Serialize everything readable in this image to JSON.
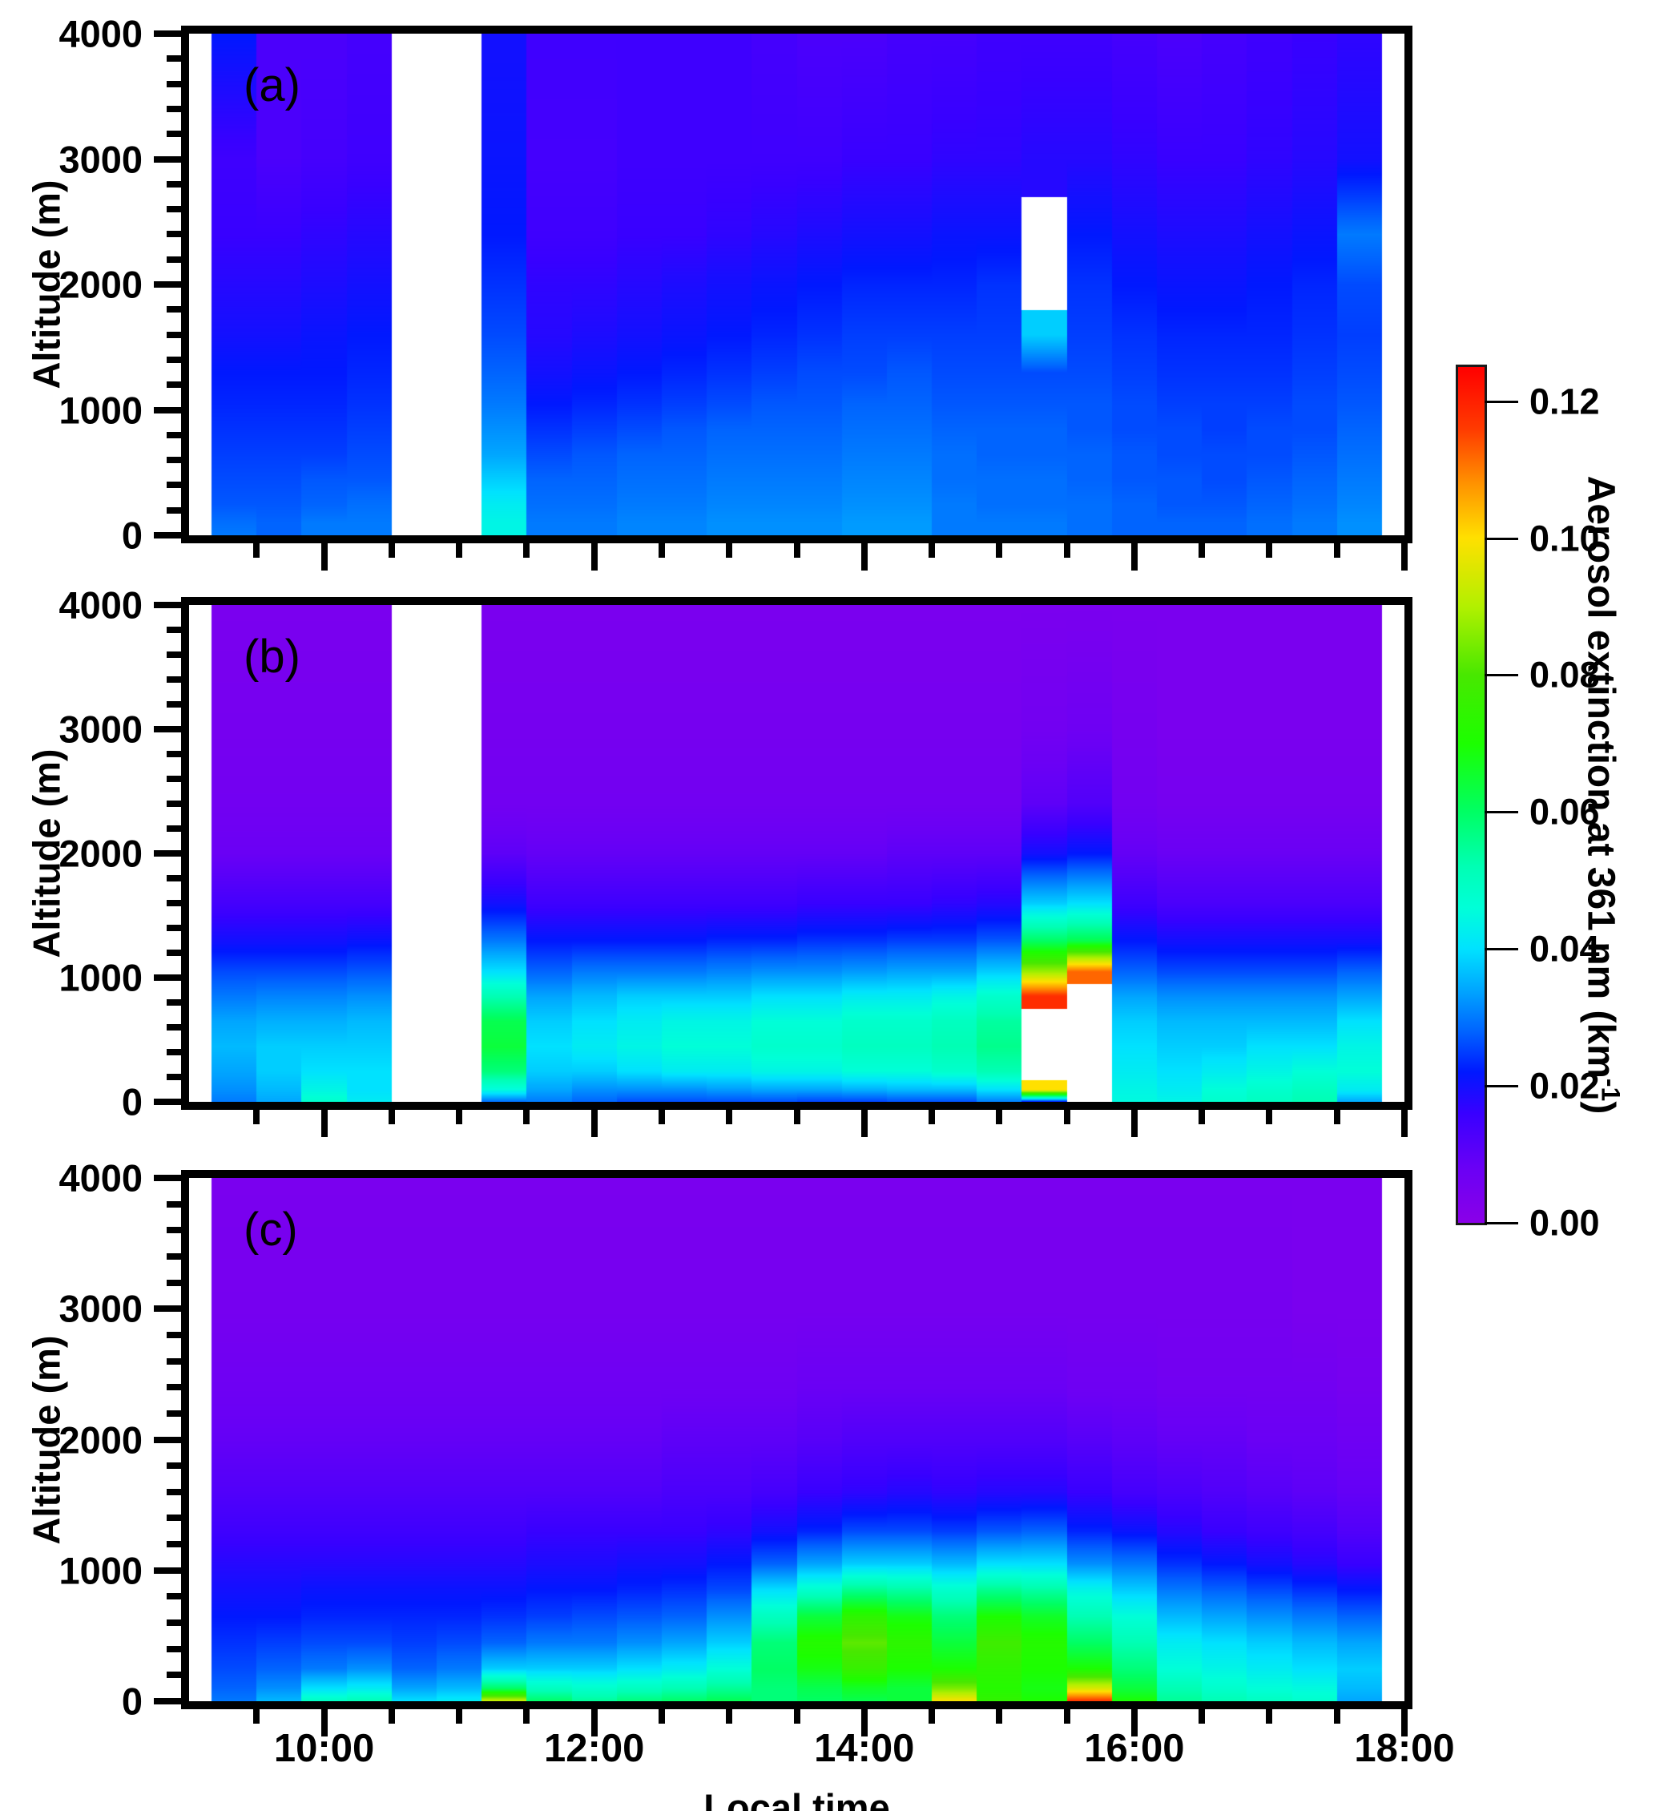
{
  "figure": {
    "y_axis": {
      "title": "Altitude (m)",
      "tick_labels": [
        "0",
        "1000",
        "2000",
        "3000",
        "4000"
      ],
      "tick_values": [
        0,
        1000,
        2000,
        3000,
        4000
      ],
      "minor_step": 200,
      "range": [
        0,
        4000
      ]
    },
    "x_axis": {
      "title": "Local  time",
      "tick_labels": [
        "10:00",
        "12:00",
        "14:00",
        "16:00",
        "18:00"
      ],
      "tick_minutes": [
        600,
        720,
        840,
        960,
        1080
      ],
      "minor_step_minutes": 30,
      "range_minutes": [
        540,
        1080
      ]
    },
    "colorbar": {
      "title_main": "Aerosol  extinction  at  361  nm  (km",
      "title_sup": "-1",
      "title_end": ")",
      "tick_labels": [
        "0.00",
        "0.02",
        "0.04",
        "0.06",
        "0.08",
        "0.10",
        "0.12"
      ],
      "tick_values_milli": [
        0,
        20,
        40,
        60,
        80,
        100,
        120
      ],
      "range_milli": [
        0,
        125
      ],
      "gradient_stops_milli": [
        [
          0,
          "#8A00E8"
        ],
        [
          8,
          "#6A00F5"
        ],
        [
          16,
          "#3800FF"
        ],
        [
          22,
          "#0018FF"
        ],
        [
          28,
          "#0064FF"
        ],
        [
          34,
          "#00A6FF"
        ],
        [
          40,
          "#00E2FF"
        ],
        [
          46,
          "#00FFD8"
        ],
        [
          52,
          "#00FFB4"
        ],
        [
          60,
          "#00FF64"
        ],
        [
          70,
          "#1CFF00"
        ],
        [
          80,
          "#48E800"
        ],
        [
          90,
          "#B2F000"
        ],
        [
          100,
          "#FFE000"
        ],
        [
          108,
          "#FF9200"
        ],
        [
          116,
          "#FF3A00"
        ],
        [
          125,
          "#FF0000"
        ]
      ]
    }
  },
  "chart_data": {
    "type": "heatmap",
    "x_minutes_start": 550,
    "x_step_minutes": 20,
    "columns": 26,
    "missing_time_window": "10:30-11:10",
    "altitude_nodes_m": [
      0,
      100,
      250,
      450,
      650,
      850,
      1050,
      1300,
      1600,
      2000,
      2400,
      3000,
      4000
    ],
    "value_scale": 0.001,
    "units": "km^-1",
    "panels": [
      {
        "label": "(a)",
        "values": [
          [
            30,
            29,
            27,
            26,
            25,
            24,
            23,
            22,
            20,
            18,
            16,
            15,
            22
          ],
          [
            28,
            28,
            27,
            26,
            25,
            24,
            23,
            22,
            20,
            18,
            16,
            13,
            13
          ],
          [
            30,
            30,
            28,
            27,
            25,
            24,
            23,
            22,
            21,
            19,
            17,
            14,
            13
          ],
          [
            30,
            30,
            29,
            27,
            26,
            25,
            24,
            23,
            22,
            20,
            18,
            15,
            14
          ],
          null,
          null,
          [
            44,
            44,
            42,
            38,
            34,
            32,
            30,
            28,
            26,
            24,
            22,
            21,
            20
          ],
          [
            30,
            30,
            29,
            28,
            26,
            24,
            22,
            20,
            18,
            17,
            15,
            14,
            15
          ],
          [
            30,
            30,
            29,
            28,
            27,
            25,
            23,
            21,
            19,
            17,
            15,
            14,
            15
          ],
          [
            31,
            31,
            30,
            29,
            28,
            26,
            24,
            22,
            20,
            18,
            16,
            15,
            15
          ],
          [
            31,
            31,
            30,
            29,
            28,
            27,
            25,
            23,
            21,
            19,
            16,
            15,
            15
          ],
          [
            32,
            32,
            31,
            30,
            29,
            28,
            26,
            24,
            22,
            20,
            17,
            15,
            15
          ],
          [
            32,
            32,
            31,
            30,
            29,
            28,
            27,
            25,
            23,
            21,
            18,
            15,
            14
          ],
          [
            32,
            32,
            31,
            30,
            29,
            28,
            27,
            26,
            24,
            22,
            19,
            15,
            13
          ],
          [
            33,
            33,
            32,
            31,
            30,
            29,
            28,
            26,
            25,
            23,
            20,
            16,
            13
          ],
          [
            33,
            33,
            32,
            31,
            30,
            29,
            28,
            27,
            25,
            23,
            20,
            16,
            14
          ],
          [
            30,
            30,
            30,
            29,
            29,
            28,
            27,
            26,
            25,
            23,
            21,
            17,
            14
          ],
          [
            30,
            30,
            29,
            29,
            28,
            28,
            27,
            26,
            25,
            24,
            21,
            17,
            15
          ],
          [
            30,
            30,
            29,
            29,
            28,
            28,
            27,
            26,
            38,
            null,
            null,
            18,
            15
          ],
          [
            29,
            29,
            29,
            28,
            28,
            27,
            27,
            26,
            25,
            24,
            22,
            18,
            15
          ],
          [
            28,
            28,
            28,
            27,
            27,
            26,
            26,
            25,
            24,
            22,
            20,
            17,
            14
          ],
          [
            28,
            28,
            27,
            27,
            26,
            26,
            25,
            24,
            23,
            21,
            19,
            16,
            13
          ],
          [
            28,
            28,
            27,
            26,
            26,
            25,
            25,
            24,
            23,
            21,
            19,
            16,
            14
          ],
          [
            29,
            29,
            28,
            27,
            26,
            26,
            25,
            24,
            23,
            22,
            20,
            17,
            15
          ],
          [
            30,
            30,
            29,
            28,
            27,
            26,
            26,
            25,
            24,
            23,
            21,
            18,
            16
          ],
          [
            32,
            32,
            31,
            30,
            29,
            28,
            27,
            26,
            25,
            26,
            30,
            20,
            17
          ]
        ]
      },
      {
        "label": "(b)",
        "values": [
          [
            30,
            32,
            34,
            36,
            34,
            30,
            26,
            20,
            14,
            8,
            6,
            5,
            4
          ],
          [
            34,
            36,
            38,
            38,
            35,
            31,
            26,
            20,
            14,
            8,
            6,
            5,
            4
          ],
          [
            48,
            44,
            40,
            38,
            35,
            31,
            26,
            20,
            14,
            8,
            6,
            5,
            4
          ],
          [
            42,
            40,
            40,
            38,
            36,
            32,
            27,
            21,
            14,
            8,
            6,
            5,
            4
          ],
          null,
          null,
          [
            28,
            45,
            58,
            64,
            62,
            52,
            40,
            30,
            20,
            10,
            6,
            5,
            4
          ],
          [
            30,
            34,
            38,
            40,
            38,
            34,
            28,
            22,
            15,
            9,
            6,
            5,
            4
          ],
          [
            28,
            32,
            38,
            42,
            40,
            36,
            30,
            22,
            15,
            9,
            6,
            5,
            4
          ],
          [
            26,
            32,
            40,
            44,
            42,
            38,
            30,
            22,
            15,
            9,
            6,
            5,
            4
          ],
          [
            26,
            32,
            42,
            46,
            44,
            38,
            30,
            22,
            15,
            9,
            6,
            5,
            4
          ],
          [
            26,
            33,
            42,
            46,
            44,
            38,
            31,
            23,
            15,
            9,
            6,
            5,
            4
          ],
          [
            26,
            34,
            44,
            48,
            46,
            40,
            32,
            23,
            15,
            9,
            6,
            5,
            4
          ],
          [
            25,
            34,
            44,
            48,
            46,
            40,
            32,
            24,
            16,
            9,
            6,
            5,
            4
          ],
          [
            25,
            35,
            46,
            50,
            48,
            42,
            33,
            24,
            16,
            9,
            6,
            5,
            4
          ],
          [
            26,
            36,
            46,
            50,
            48,
            42,
            34,
            25,
            16,
            10,
            6,
            5,
            4
          ],
          [
            26,
            36,
            48,
            52,
            50,
            44,
            34,
            25,
            17,
            10,
            6,
            5,
            4
          ],
          [
            30,
            40,
            52,
            56,
            54,
            48,
            38,
            27,
            18,
            10,
            6,
            5,
            4
          ],
          [
            18,
            100,
            null,
            null,
            null,
            118,
            88,
            60,
            38,
            20,
            10,
            6,
            4
          ],
          [
            null,
            null,
            null,
            null,
            null,
            null,
            112,
            62,
            40,
            22,
            12,
            7,
            4
          ],
          [
            45,
            44,
            42,
            40,
            38,
            34,
            28,
            22,
            15,
            9,
            6,
            5,
            4
          ],
          [
            44,
            42,
            40,
            38,
            36,
            32,
            26,
            20,
            13,
            8,
            5,
            4,
            4
          ],
          [
            48,
            46,
            42,
            38,
            36,
            32,
            26,
            20,
            13,
            8,
            5,
            4,
            4
          ],
          [
            50,
            48,
            44,
            40,
            36,
            32,
            26,
            20,
            13,
            8,
            5,
            4,
            4
          ],
          [
            52,
            50,
            46,
            40,
            36,
            32,
            26,
            20,
            13,
            8,
            5,
            4,
            4
          ],
          [
            34,
            42,
            46,
            44,
            40,
            34,
            28,
            20,
            13,
            8,
            5,
            4,
            4
          ]
        ]
      },
      {
        "label": "(c)",
        "values": [
          [
            30,
            28,
            26,
            24,
            22,
            20,
            18,
            15,
            12,
            9,
            7,
            5,
            4
          ],
          [
            36,
            32,
            28,
            25,
            22,
            20,
            18,
            15,
            12,
            9,
            7,
            5,
            4
          ],
          [
            50,
            40,
            30,
            26,
            23,
            21,
            18,
            15,
            12,
            9,
            7,
            5,
            4
          ],
          [
            52,
            42,
            32,
            26,
            23,
            21,
            18,
            15,
            12,
            9,
            7,
            5,
            4
          ],
          [
            40,
            34,
            28,
            25,
            23,
            21,
            18,
            15,
            12,
            9,
            7,
            5,
            4
          ],
          [
            42,
            36,
            30,
            26,
            23,
            21,
            18,
            15,
            12,
            9,
            7,
            5,
            4
          ],
          [
            95,
            60,
            38,
            28,
            24,
            21,
            18,
            15,
            12,
            9,
            7,
            5,
            4
          ],
          [
            60,
            50,
            38,
            30,
            25,
            22,
            19,
            16,
            12,
            9,
            7,
            5,
            4
          ],
          [
            55,
            48,
            38,
            30,
            26,
            22,
            19,
            16,
            12,
            9,
            7,
            5,
            4
          ],
          [
            58,
            50,
            40,
            32,
            27,
            23,
            20,
            16,
            12,
            9,
            7,
            5,
            4
          ],
          [
            60,
            52,
            42,
            34,
            28,
            24,
            20,
            16,
            13,
            10,
            7,
            5,
            4
          ],
          [
            62,
            55,
            46,
            38,
            32,
            26,
            22,
            17,
            13,
            10,
            7,
            5,
            4
          ],
          [
            58,
            58,
            60,
            58,
            50,
            40,
            28,
            20,
            14,
            10,
            7,
            5,
            4
          ],
          [
            60,
            62,
            68,
            72,
            64,
            48,
            34,
            23,
            16,
            11,
            8,
            5,
            4
          ],
          [
            62,
            66,
            76,
            82,
            74,
            56,
            38,
            26,
            17,
            12,
            8,
            5,
            4
          ],
          [
            64,
            64,
            70,
            74,
            68,
            54,
            38,
            26,
            18,
            12,
            8,
            5,
            4
          ],
          [
            100,
            85,
            70,
            64,
            58,
            48,
            36,
            25,
            17,
            12,
            8,
            5,
            4
          ],
          [
            75,
            72,
            74,
            78,
            70,
            56,
            40,
            27,
            18,
            12,
            8,
            5,
            4
          ],
          [
            70,
            68,
            70,
            72,
            66,
            54,
            40,
            28,
            18,
            12,
            8,
            5,
            4
          ],
          [
            118,
            95,
            70,
            60,
            52,
            44,
            32,
            23,
            16,
            11,
            7,
            5,
            4
          ],
          [
            70,
            64,
            58,
            52,
            46,
            38,
            30,
            21,
            14,
            10,
            7,
            5,
            4
          ],
          [
            55,
            52,
            46,
            42,
            36,
            30,
            24,
            18,
            13,
            9,
            6,
            5,
            4
          ],
          [
            52,
            48,
            44,
            40,
            34,
            28,
            22,
            16,
            12,
            9,
            6,
            5,
            4
          ],
          [
            50,
            46,
            42,
            38,
            32,
            26,
            20,
            15,
            11,
            8,
            6,
            5,
            4
          ],
          [
            48,
            45,
            40,
            36,
            30,
            24,
            18,
            14,
            10,
            8,
            6,
            4,
            4
          ],
          [
            34,
            36,
            38,
            34,
            28,
            22,
            16,
            12,
            9,
            7,
            5,
            4,
            4
          ]
        ]
      }
    ]
  }
}
